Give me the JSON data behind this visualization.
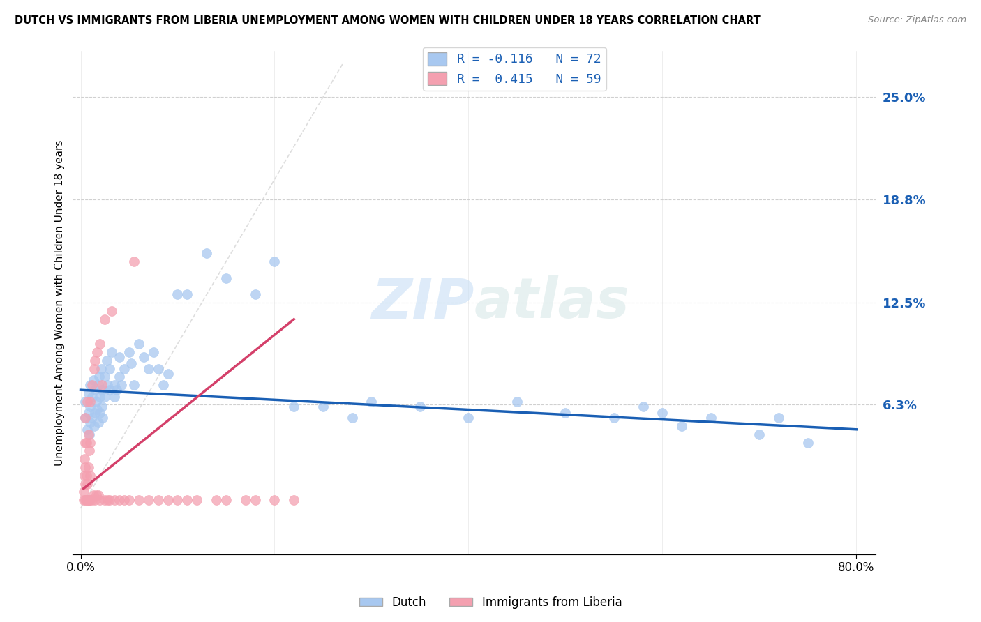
{
  "title": "DUTCH VS IMMIGRANTS FROM LIBERIA UNEMPLOYMENT AMONG WOMEN WITH CHILDREN UNDER 18 YEARS CORRELATION CHART",
  "source": "Source: ZipAtlas.com",
  "ylabel": "Unemployment Among Women with Children Under 18 years",
  "ytick_labels": [
    "25.0%",
    "18.8%",
    "12.5%",
    "6.3%"
  ],
  "ytick_values": [
    0.25,
    0.188,
    0.125,
    0.063
  ],
  "xlim": [
    -0.008,
    0.82
  ],
  "ylim": [
    -0.028,
    0.278
  ],
  "legend1_label": "R = -0.116   N = 72",
  "legend2_label": "R =  0.415   N = 59",
  "dutch_color": "#a8c8f0",
  "liberia_color": "#f4a0b0",
  "dutch_line_color": "#1a5fb4",
  "liberia_line_color": "#d4406a",
  "diag_line_color": "#cccccc",
  "background_color": "#ffffff",
  "watermark": "ZIPatlas",
  "dutch_x": [
    0.005,
    0.005,
    0.007,
    0.008,
    0.008,
    0.009,
    0.01,
    0.01,
    0.01,
    0.012,
    0.012,
    0.013,
    0.014,
    0.015,
    0.015,
    0.016,
    0.017,
    0.018,
    0.018,
    0.019,
    0.02,
    0.02,
    0.021,
    0.022,
    0.022,
    0.023,
    0.025,
    0.025,
    0.027,
    0.028,
    0.03,
    0.03,
    0.032,
    0.035,
    0.035,
    0.037,
    0.04,
    0.04,
    0.042,
    0.045,
    0.05,
    0.052,
    0.055,
    0.06,
    0.065,
    0.07,
    0.075,
    0.08,
    0.085,
    0.09,
    0.1,
    0.11,
    0.13,
    0.15,
    0.18,
    0.2,
    0.22,
    0.25,
    0.28,
    0.3,
    0.35,
    0.4,
    0.45,
    0.5,
    0.55,
    0.58,
    0.6,
    0.62,
    0.65,
    0.7,
    0.72,
    0.75
  ],
  "dutch_y": [
    0.055,
    0.065,
    0.048,
    0.07,
    0.058,
    0.045,
    0.062,
    0.075,
    0.052,
    0.068,
    0.055,
    0.078,
    0.05,
    0.072,
    0.058,
    0.065,
    0.06,
    0.075,
    0.052,
    0.08,
    0.068,
    0.058,
    0.085,
    0.072,
    0.062,
    0.055,
    0.08,
    0.068,
    0.09,
    0.075,
    0.072,
    0.085,
    0.095,
    0.075,
    0.068,
    0.072,
    0.08,
    0.092,
    0.075,
    0.085,
    0.095,
    0.088,
    0.075,
    0.1,
    0.092,
    0.085,
    0.095,
    0.085,
    0.075,
    0.082,
    0.13,
    0.13,
    0.155,
    0.14,
    0.13,
    0.15,
    0.062,
    0.062,
    0.055,
    0.065,
    0.062,
    0.055,
    0.065,
    0.058,
    0.055,
    0.062,
    0.058,
    0.05,
    0.055,
    0.045,
    0.055,
    0.04
  ],
  "liberia_x": [
    0.003,
    0.003,
    0.004,
    0.004,
    0.005,
    0.005,
    0.005,
    0.005,
    0.005,
    0.006,
    0.006,
    0.006,
    0.007,
    0.007,
    0.007,
    0.008,
    0.008,
    0.008,
    0.009,
    0.009,
    0.01,
    0.01,
    0.01,
    0.01,
    0.012,
    0.012,
    0.013,
    0.014,
    0.015,
    0.015,
    0.016,
    0.017,
    0.018,
    0.02,
    0.02,
    0.022,
    0.025,
    0.025,
    0.028,
    0.03,
    0.032,
    0.035,
    0.04,
    0.045,
    0.05,
    0.055,
    0.06,
    0.07,
    0.08,
    0.09,
    0.1,
    0.11,
    0.12,
    0.14,
    0.15,
    0.17,
    0.18,
    0.2,
    0.22
  ],
  "liberia_y": [
    0.005,
    0.01,
    0.02,
    0.03,
    0.005,
    0.015,
    0.025,
    0.04,
    0.055,
    0.005,
    0.02,
    0.04,
    0.005,
    0.015,
    0.065,
    0.005,
    0.025,
    0.045,
    0.005,
    0.035,
    0.005,
    0.02,
    0.04,
    0.065,
    0.005,
    0.075,
    0.008,
    0.085,
    0.005,
    0.09,
    0.008,
    0.095,
    0.008,
    0.005,
    0.1,
    0.075,
    0.005,
    0.115,
    0.005,
    0.005,
    0.12,
    0.005,
    0.005,
    0.005,
    0.005,
    0.15,
    0.005,
    0.005,
    0.005,
    0.005,
    0.005,
    0.005,
    0.005,
    0.005,
    0.005,
    0.005,
    0.005,
    0.005,
    0.005
  ],
  "dutch_trend_x": [
    0.0,
    0.8
  ],
  "dutch_trend_y": [
    0.072,
    0.048
  ],
  "liberia_trend_x": [
    0.003,
    0.22
  ],
  "liberia_trend_y": [
    0.012,
    0.115
  ]
}
